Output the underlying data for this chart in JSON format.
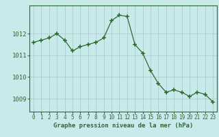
{
  "x": [
    0,
    1,
    2,
    3,
    4,
    5,
    6,
    7,
    8,
    9,
    10,
    11,
    12,
    13,
    14,
    15,
    16,
    17,
    18,
    19,
    20,
    21,
    22,
    23
  ],
  "y": [
    1011.6,
    1011.7,
    1011.8,
    1012.0,
    1011.7,
    1011.2,
    1011.4,
    1011.5,
    1011.6,
    1011.8,
    1012.6,
    1012.85,
    1012.8,
    1011.5,
    1011.1,
    1010.3,
    1009.7,
    1009.3,
    1009.4,
    1009.3,
    1009.1,
    1009.3,
    1009.2,
    1008.85
  ],
  "line_color": "#2d6a2d",
  "marker_color": "#2d6a2d",
  "bg_color": "#c8eaea",
  "grid_color": "#b0cccc",
  "border_color": "#2d6a2d",
  "xlabel": "Graphe pression niveau de la mer (hPa)",
  "xlabel_color": "#2d6a2d",
  "tick_color": "#2d6a2d",
  "yticks": [
    1009,
    1010,
    1011,
    1012
  ],
  "ylim": [
    1008.4,
    1013.3
  ],
  "xlim": [
    -0.5,
    23.5
  ],
  "xtick_labels": [
    "0",
    "1",
    "2",
    "3",
    "4",
    "5",
    "6",
    "7",
    "8",
    "9",
    "10",
    "11",
    "12",
    "13",
    "14",
    "15",
    "16",
    "17",
    "18",
    "19",
    "20",
    "21",
    "22",
    "23"
  ]
}
